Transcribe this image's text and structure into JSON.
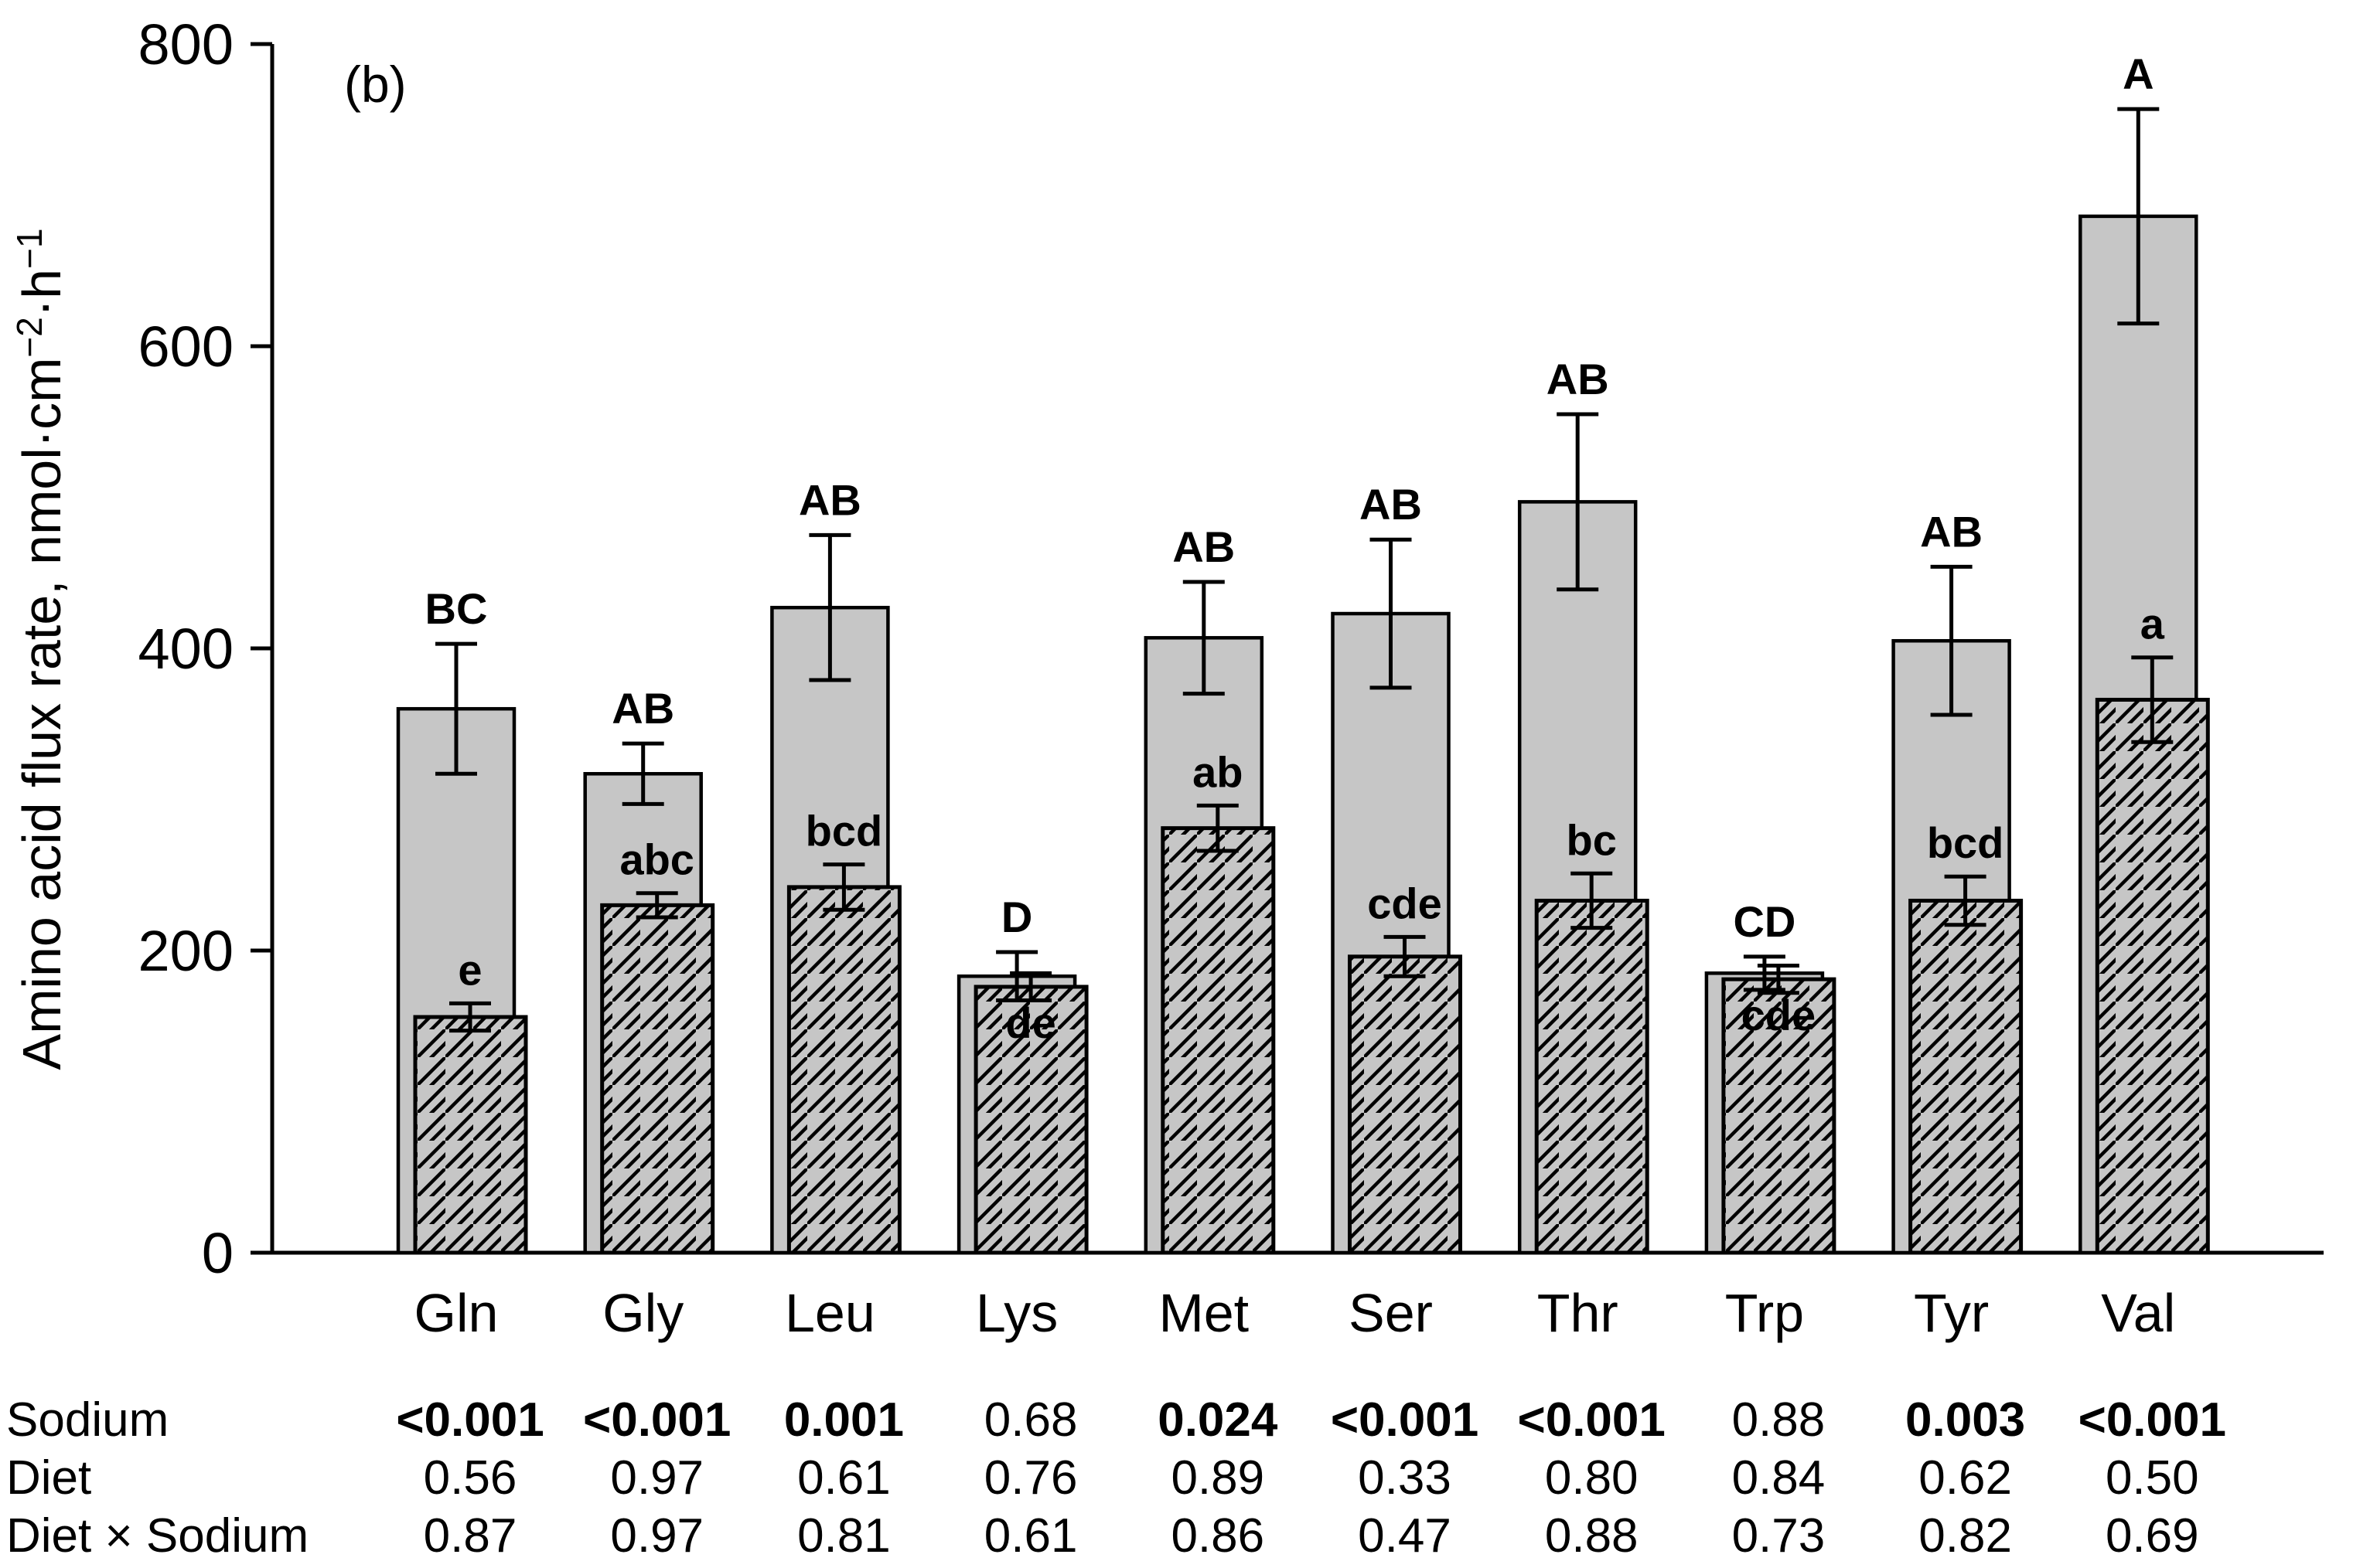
{
  "figure": {
    "panel_label": "(b)"
  },
  "chart_data": {
    "type": "bar",
    "title": "",
    "ylabel_parts": [
      {
        "kind": "text",
        "value": "Amino acid flux rate, nmol·cm"
      },
      {
        "kind": "sup",
        "value": "−2"
      },
      {
        "kind": "text",
        "value": "·h"
      },
      {
        "kind": "sup",
        "value": "−1"
      }
    ],
    "ylabel_plain": "Amino acid flux rate, nmol·cm⁻²·h⁻¹",
    "xlabel": "",
    "ylim": [
      0,
      800
    ],
    "yticks": [
      0,
      200,
      400,
      600,
      800
    ],
    "ytick_labels": [
      "0",
      "200",
      "400",
      "600",
      "800"
    ],
    "grid": false,
    "legend": "none",
    "categories": [
      "Gln",
      "Gly",
      "Leu",
      "Lys",
      "Met",
      "Ser",
      "Thr",
      "Trp",
      "Tyr",
      "Val"
    ],
    "series": [
      {
        "name": "solid-gray-bars",
        "style": "solid",
        "values": [
          360,
          317,
          427,
          183,
          407,
          423,
          497,
          185,
          405,
          686
        ],
        "errors": [
          43,
          20,
          48,
          16,
          37,
          49,
          58,
          11,
          49,
          71
        ],
        "letters": [
          "BC",
          "AB",
          "AB",
          "D",
          "AB",
          "AB",
          "AB",
          "CD",
          "AB",
          "A"
        ],
        "letter_positions": [
          "above",
          "above",
          "above",
          "above",
          "above",
          "above",
          "above",
          "above",
          "above",
          "above"
        ]
      },
      {
        "name": "hatched-bars",
        "style": "hatched",
        "values": [
          156,
          230,
          242,
          176,
          281,
          196,
          233,
          181,
          233,
          366
        ],
        "errors": [
          9,
          8,
          15,
          9,
          15,
          13,
          18,
          9,
          16,
          28
        ],
        "letters": [
          "e",
          "abc",
          "bcd",
          "de",
          "ab",
          "cde",
          "bc",
          "cde",
          "bcd",
          "a"
        ],
        "letter_positions": [
          "above",
          "above",
          "above",
          "below",
          "above",
          "above",
          "above",
          "below",
          "above",
          "above"
        ]
      }
    ],
    "colors": {
      "bar_fill": "#c6c6c6",
      "bar_stroke": "#000000",
      "hatch_line": "#000000",
      "axis": "#000000",
      "text": "#000000",
      "background": "#ffffff"
    },
    "p_table": {
      "rows": [
        {
          "label": "Sodium",
          "values": [
            "<0.001",
            "<0.001",
            "0.001",
            "0.68",
            "0.024",
            "<0.001",
            "<0.001",
            "0.88",
            "0.003",
            "<0.001"
          ],
          "bold": [
            1,
            1,
            1,
            0,
            1,
            1,
            1,
            0,
            1,
            1
          ]
        },
        {
          "label": "Diet",
          "values": [
            "0.56",
            "0.97",
            "0.61",
            "0.76",
            "0.89",
            "0.33",
            "0.80",
            "0.84",
            "0.62",
            "0.50"
          ],
          "bold": [
            0,
            0,
            0,
            0,
            0,
            0,
            0,
            0,
            0,
            0
          ]
        },
        {
          "label": "Diet × Sodium",
          "values": [
            "0.87",
            "0.97",
            "0.81",
            "0.61",
            "0.86",
            "0.47",
            "0.88",
            "0.73",
            "0.82",
            "0.69"
          ],
          "bold": [
            0,
            0,
            0,
            0,
            0,
            0,
            0,
            0,
            0,
            0
          ]
        }
      ]
    }
  }
}
